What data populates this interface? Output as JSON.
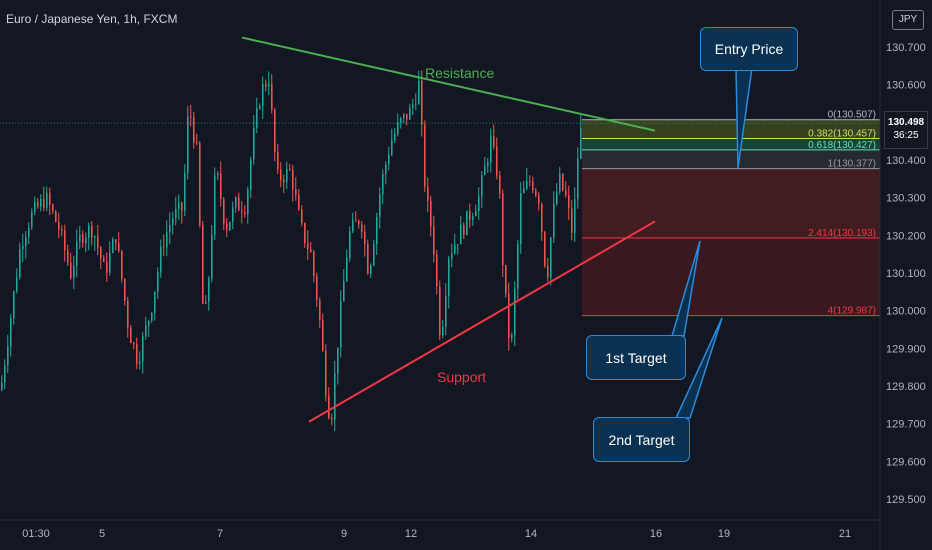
{
  "header": {
    "symbol_title": "Euro / Japanese Yen, 1h, FXCM",
    "currency": "JPY"
  },
  "current_price": {
    "price": "130.498",
    "countdown": "36:25"
  },
  "annotations": {
    "resistance": "Resistance",
    "support": "Support",
    "entry": "Entry Price",
    "target1": "1st Target",
    "target2": "2nd Target"
  },
  "fib_levels": [
    {
      "label": "0(130.507)",
      "price": 130.507,
      "color": "#b2b5be"
    },
    {
      "label": "0.382(130.457)",
      "price": 130.457,
      "color": "#c5e35b"
    },
    {
      "label": "0.618(130.427)",
      "price": 130.427,
      "color": "#5ae2b5"
    },
    {
      "label": "1(130.377)",
      "price": 130.377,
      "color": "#9598a1"
    },
    {
      "label": "2.414(130.193)",
      "price": 130.193,
      "color": "#f23645"
    },
    {
      "label": "4(129.987)",
      "price": 129.987,
      "color": "#f23645"
    }
  ],
  "colors": {
    "up": "#26a69a",
    "down": "#ef5350",
    "resistance": "#4caf50",
    "support": "#f23645",
    "callout_fill": "#0b3152",
    "callout_border": "#2a8bdc"
  },
  "chart_data": {
    "type": "candlestick",
    "title": "Euro / Japanese Yen, 1h, FXCM",
    "x_ticks": [
      "01:30",
      "5",
      "7",
      "9",
      "12",
      "14",
      "16",
      "19",
      "21"
    ],
    "y_ticks": [
      "130.700",
      "130.600",
      "130.400",
      "130.300",
      "130.200",
      "130.100",
      "130.000",
      "129.900",
      "129.800",
      "129.700",
      "129.600",
      "129.500"
    ],
    "ylim": [
      129.45,
      130.8
    ],
    "price_path": [
      [
        0,
        129.79
      ],
      [
        20,
        130.18
      ],
      [
        30,
        130.25
      ],
      [
        45,
        130.3
      ],
      [
        58,
        130.22
      ],
      [
        70,
        130.1
      ],
      [
        80,
        130.2
      ],
      [
        92,
        130.22
      ],
      [
        104,
        130.1
      ],
      [
        115,
        130.2
      ],
      [
        128,
        129.95
      ],
      [
        137,
        129.87
      ],
      [
        150,
        130.0
      ],
      [
        162,
        130.18
      ],
      [
        172,
        130.25
      ],
      [
        182,
        130.27
      ],
      [
        188,
        130.55
      ],
      [
        196,
        130.42
      ],
      [
        203,
        129.95
      ],
      [
        207,
        130.05
      ],
      [
        215,
        130.38
      ],
      [
        225,
        130.22
      ],
      [
        235,
        130.28
      ],
      [
        245,
        130.28
      ],
      [
        252,
        130.45
      ],
      [
        260,
        130.58
      ],
      [
        268,
        130.62
      ],
      [
        276,
        130.35
      ],
      [
        290,
        130.37
      ],
      [
        300,
        130.22
      ],
      [
        310,
        130.15
      ],
      [
        318,
        130.0
      ],
      [
        325,
        129.8
      ],
      [
        330,
        129.7
      ],
      [
        338,
        129.95
      ],
      [
        348,
        130.2
      ],
      [
        360,
        130.25
      ],
      [
        368,
        130.1
      ],
      [
        380,
        130.33
      ],
      [
        390,
        130.45
      ],
      [
        400,
        130.5
      ],
      [
        410,
        130.53
      ],
      [
        418,
        130.6
      ],
      [
        425,
        130.3
      ],
      [
        432,
        130.2
      ],
      [
        440,
        129.92
      ],
      [
        448,
        130.15
      ],
      [
        458,
        130.2
      ],
      [
        468,
        130.25
      ],
      [
        478,
        130.3
      ],
      [
        490,
        130.45
      ],
      [
        498,
        130.35
      ],
      [
        503,
        130.08
      ],
      [
        510,
        129.88
      ],
      [
        520,
        130.3
      ],
      [
        530,
        130.35
      ],
      [
        538,
        130.3
      ],
      [
        546,
        130.08
      ],
      [
        552,
        130.25
      ],
      [
        558,
        130.35
      ],
      [
        565,
        130.3
      ],
      [
        572,
        130.2
      ],
      [
        578,
        130.45
      ],
      [
        582,
        130.5
      ]
    ],
    "resistance_line": {
      "label": "Resistance",
      "from": [
        242,
        130.725
      ],
      "to": [
        655,
        130.478
      ]
    },
    "support_line": {
      "label": "Support",
      "from": [
        309,
        129.705
      ],
      "to": [
        655,
        130.237
      ]
    },
    "current_price": 130.498
  }
}
